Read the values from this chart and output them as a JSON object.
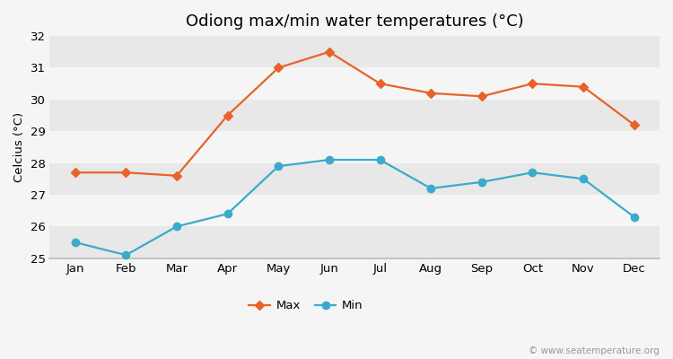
{
  "title": "Odiong max/min water temperatures (°C)",
  "ylabel": "Celcius (°C)",
  "months": [
    "Jan",
    "Feb",
    "Mar",
    "Apr",
    "May",
    "Jun",
    "Jul",
    "Aug",
    "Sep",
    "Oct",
    "Nov",
    "Dec"
  ],
  "max_temps": [
    27.7,
    27.7,
    27.6,
    29.5,
    31.0,
    31.5,
    30.5,
    30.2,
    30.1,
    30.5,
    30.4,
    29.2
  ],
  "min_temps": [
    25.5,
    25.1,
    26.0,
    26.4,
    27.9,
    28.1,
    28.1,
    27.2,
    27.4,
    27.7,
    27.5,
    26.3
  ],
  "max_color": "#e8622a",
  "min_color": "#3aabcc",
  "ylim": [
    25.0,
    32.0
  ],
  "yticks": [
    25,
    26,
    27,
    28,
    29,
    30,
    31,
    32
  ],
  "band_colors": [
    "#e8e8e8",
    "#f5f5f5"
  ],
  "bg_color": "#f5f5f5",
  "bottom_bg": "#e0e0e0",
  "watermark": "© www.seatemperature.org",
  "title_fontsize": 13,
  "label_fontsize": 9.5,
  "tick_fontsize": 9.5,
  "watermark_fontsize": 7.5
}
